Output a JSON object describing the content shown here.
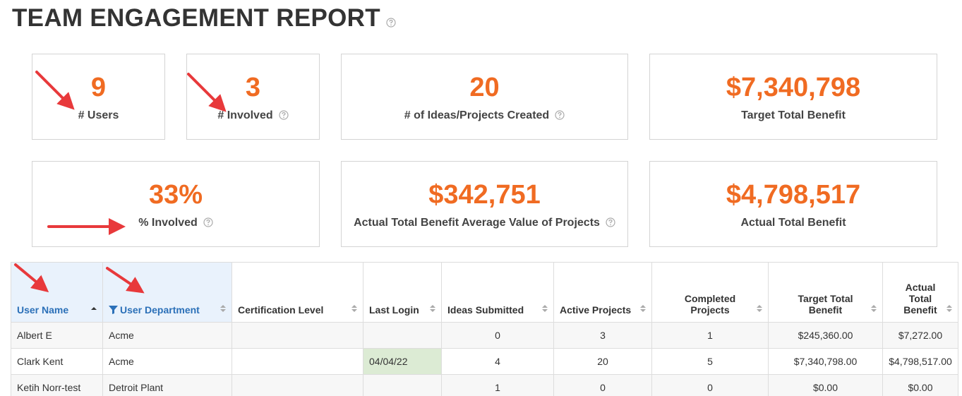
{
  "header": {
    "title": "TEAM ENGAGEMENT REPORT",
    "help": true
  },
  "kpi_rows": [
    [
      {
        "value": "9",
        "label": "# Users",
        "help": false
      },
      {
        "value": "3",
        "label": "# Involved",
        "help": true
      },
      {
        "value": "20",
        "label": "# of Ideas/Projects Created",
        "help": true
      },
      {
        "value": "$7,340,798",
        "label": "Target Total Benefit",
        "help": false
      }
    ],
    [
      {
        "value": "33%",
        "label": "% Involved",
        "help": true
      },
      {
        "value": "$342,751",
        "label": "Actual Total Benefit Average Value of Projects",
        "help": true
      },
      {
        "value": "$4,798,517",
        "label": "Actual Total Benefit",
        "help": false
      }
    ]
  ],
  "table": {
    "columns": [
      "User Name",
      "User Department",
      "Certification Level",
      "Last Login",
      "Ideas Submitted",
      "Active Projects",
      "Completed Projects",
      "Target Total Benefit",
      "Actual Total Benefit"
    ],
    "sorted_column": 0,
    "filtered_column": 1,
    "rows": [
      [
        "Albert E",
        "Acme",
        null,
        null,
        "0",
        "3",
        "1",
        "$245,360.00",
        "$7,272.00"
      ],
      [
        "Clark Kent",
        "Acme",
        null,
        "04/04/22",
        "4",
        "20",
        "5",
        "$7,340,798.00",
        "$4,798,517.00"
      ],
      [
        "Ketih Norr-test",
        "Detroit Plant",
        null,
        null,
        "1",
        "0",
        "0",
        "$0.00",
        "$0.00"
      ]
    ],
    "highlighted_cells": [
      [
        1,
        3
      ]
    ]
  }
}
